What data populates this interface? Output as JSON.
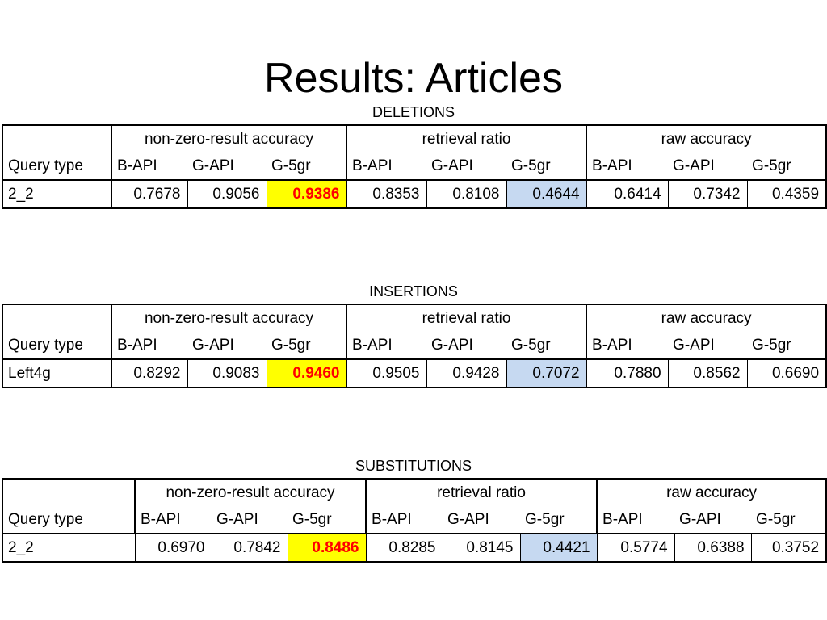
{
  "title": "Results: Articles",
  "tables": [
    {
      "caption": "DELETIONS",
      "groups": [
        "non-zero-result accuracy",
        "retrieval ratio",
        "raw accuracy"
      ],
      "row_header": "Query type",
      "columns": [
        "B-API",
        "G-API",
        "G-5gr",
        "B-API",
        "G-API",
        "G-5gr",
        "B-API",
        "G-API",
        "G-5gr"
      ],
      "query": "2_2",
      "values": [
        "0.7678",
        "0.9056",
        "0.9386",
        "0.8353",
        "0.8108",
        "0.4644",
        "0.6414",
        "0.7342",
        "0.4359"
      ]
    },
    {
      "caption": "INSERTIONS",
      "groups": [
        "non-zero-result accuracy",
        "retrieval ratio",
        "raw accuracy"
      ],
      "row_header": "Query type",
      "columns": [
        "B-API",
        "G-API",
        "G-5gr",
        "B-API",
        "G-API",
        "G-5gr",
        "B-API",
        "G-API",
        "G-5gr"
      ],
      "query": "Left4g",
      "values": [
        "0.8292",
        "0.9083",
        "0.9460",
        "0.9505",
        "0.9428",
        "0.7072",
        "0.7880",
        "0.8562",
        "0.6690"
      ]
    },
    {
      "caption": "SUBSTITUTIONS",
      "groups": [
        "non-zero-result accuracy",
        "retrieval ratio",
        "raw accuracy"
      ],
      "row_header": "Query type",
      "columns": [
        "B-API",
        "G-API",
        "G-5gr",
        "B-API",
        "G-API",
        "G-5gr",
        "B-API",
        "G-API",
        "G-5gr"
      ],
      "query": "2_2",
      "values": [
        "0.6970",
        "0.7842",
        "0.8486",
        "0.8285",
        "0.8145",
        "0.4421",
        "0.5774",
        "0.6388",
        "0.3752"
      ]
    }
  ]
}
